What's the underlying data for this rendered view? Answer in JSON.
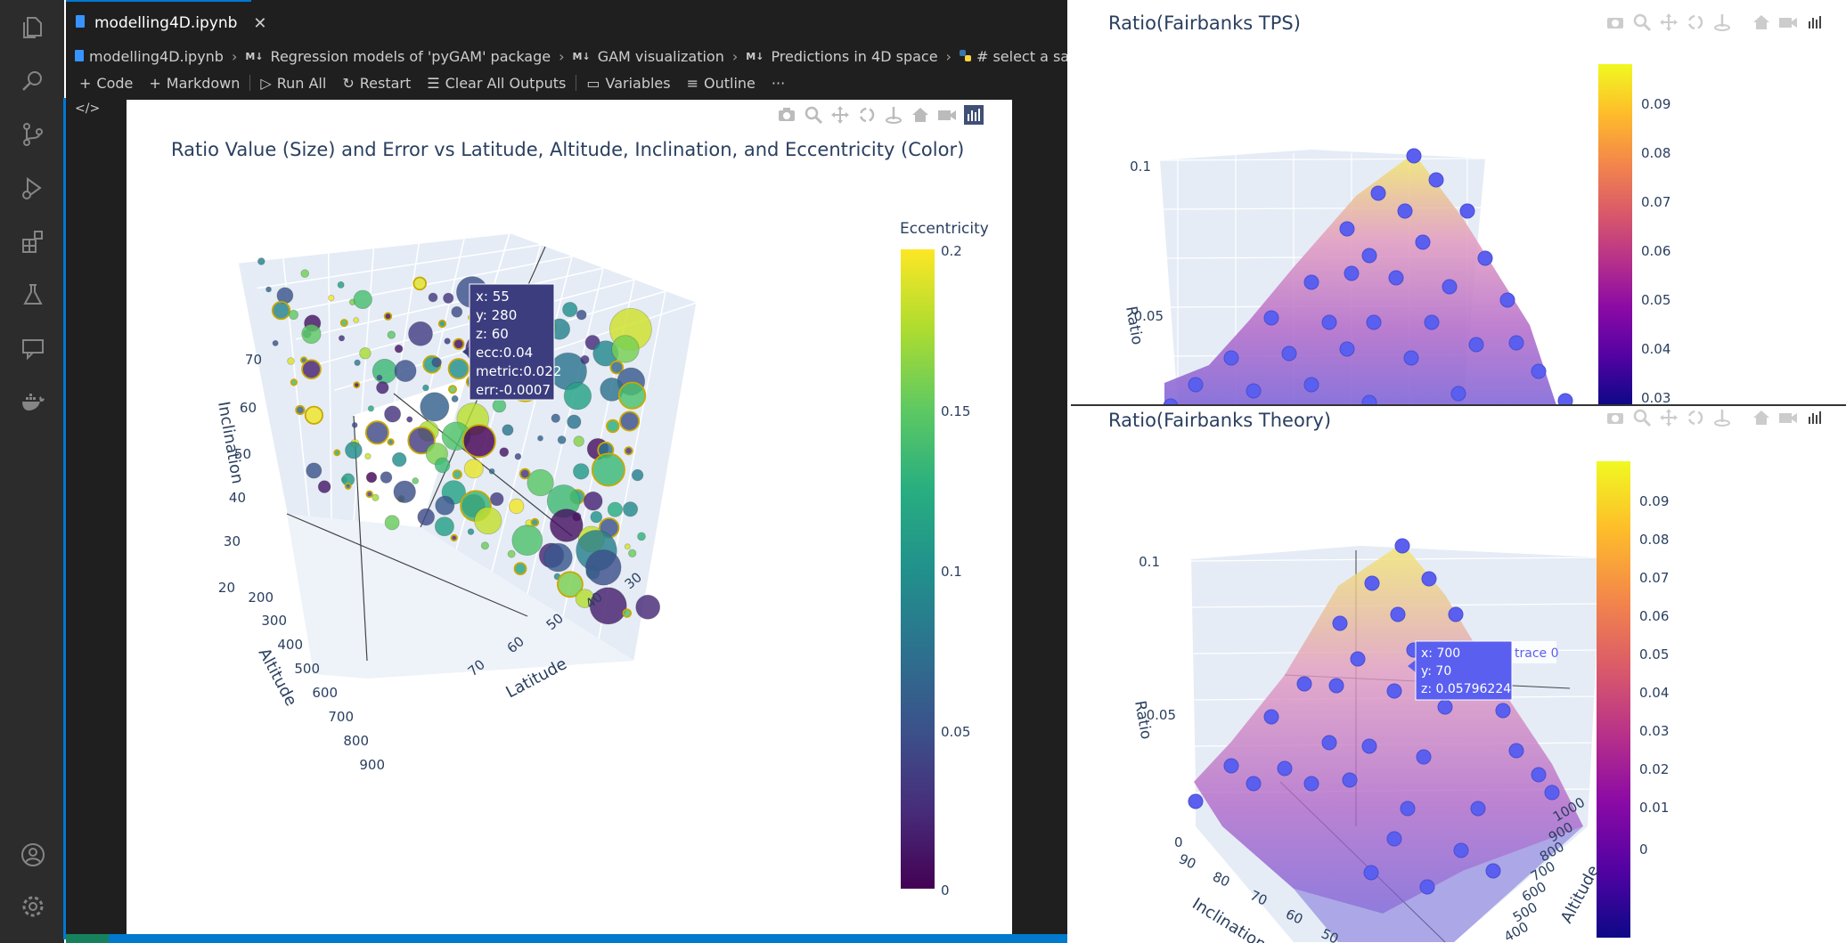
{
  "tab": {
    "filename": "modelling4D.ipynb",
    "close_glyph": "✕"
  },
  "breadcrumb": {
    "items": [
      "modelling4D.ipynb",
      "Regression models of 'pyGAM' package",
      "GAM visualization",
      "Predictions in 4D space",
      "# select a sample of the daa"
    ],
    "md_badge": "M↓"
  },
  "toolbar": {
    "code": "Code",
    "markdown": "Markdown",
    "run_all": "Run All",
    "restart": "Restart",
    "clear_all": "Clear All Outputs",
    "variables": "Variables",
    "outline": "Outline",
    "more": "···"
  },
  "activity_icons": [
    "explorer-icon",
    "search-icon",
    "source-control-icon",
    "run-debug-icon",
    "extensions-icon",
    "testing-icon",
    "chat-icon",
    "docker-icon",
    "account-icon",
    "settings-icon"
  ],
  "plot_main": {
    "title": "Ratio Value (Size) and Error vs Latitude, Altitude, Inclination, and Eccentricity (Color)",
    "colorbar_title": "Eccentricity",
    "colorbar_ticks": [
      "0.2",
      "0.15",
      "0.1",
      "0.05",
      "0"
    ],
    "axis_inclination_label": "Inclination",
    "axis_altitude_label": "Altitude",
    "axis_latitude_label": "Latitude",
    "inclination_ticks": [
      "70",
      "60",
      "50",
      "40",
      "30",
      "20"
    ],
    "altitude_ticks": [
      "200",
      "300",
      "400",
      "500",
      "600",
      "700",
      "800",
      "900"
    ],
    "latitude_ticks": [
      "30",
      "40",
      "50",
      "60",
      "70"
    ],
    "hover": [
      "x: 55",
      "y: 280",
      "z: 60",
      "ecc:0.04",
      "metric:0.022",
      "err:-0.0007"
    ],
    "colors": {
      "viridis_top": "#fde725",
      "viridis_bottom": "#440154",
      "scene_bg": "#e5ecf6"
    }
  },
  "plot_tps": {
    "title": "Ratio(Fairbanks TPS)",
    "z_label": "Ratio",
    "z_ticks": [
      "0.1",
      "0.05"
    ],
    "colorbar_ticks": [
      "0.09",
      "0.08",
      "0.07",
      "0.06",
      "0.05",
      "0.04",
      "0.03"
    ]
  },
  "plot_theory": {
    "title": "Ratio(Fairbanks Theory)",
    "z_label": "Ratio",
    "z_ticks": [
      "0.1",
      "0.05"
    ],
    "colorbar_ticks": [
      "0.09",
      "0.08",
      "0.07",
      "0.06",
      "0.05",
      "0.04",
      "0.03",
      "0.02",
      "0.01",
      "0"
    ],
    "inclination_label": "Inclination",
    "inclination_ticks": [
      "90",
      "80",
      "70",
      "60",
      "50"
    ],
    "altitude_label": "Altitude",
    "altitude_ticks": [
      "1000",
      "900",
      "800",
      "700",
      "600",
      "500",
      "400"
    ],
    "hover": [
      "x: 700",
      "y: 70",
      "z: 0.05796224"
    ],
    "hover_trace": "trace 0",
    "inclination_zero": "0",
    "colors": {
      "plasma_top": "#f0f921",
      "plasma_bottom": "#0d0887",
      "point": "#5b5ff0"
    }
  }
}
